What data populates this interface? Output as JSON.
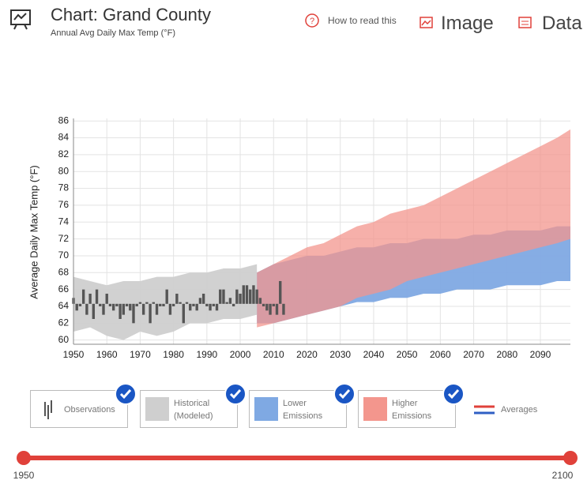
{
  "header": {
    "title": "Chart: Grand County",
    "subtitle": "Annual Avg Daily Max Temp (°F)",
    "help": "How to read this",
    "image": "Image",
    "data": "Data"
  },
  "chart_data": {
    "type": "band",
    "y_label": "Average Daily Max Temp (°F)",
    "xlim": [
      1950,
      2099
    ],
    "ylim": [
      59.5,
      86.3
    ],
    "xticks": [
      1950,
      1960,
      1970,
      1980,
      1990,
      2000,
      2010,
      2020,
      2030,
      2040,
      2050,
      2060,
      2070,
      2080,
      2090
    ],
    "yticks": [
      60,
      62,
      64,
      66,
      68,
      70,
      72,
      74,
      76,
      78,
      80,
      82,
      84,
      86
    ],
    "grid": true,
    "series": [
      {
        "name": "Observations",
        "kind": "bar",
        "color": "#555555",
        "x": [
          1950,
          1951,
          1952,
          1953,
          1954,
          1955,
          1956,
          1957,
          1958,
          1959,
          1960,
          1961,
          1962,
          1963,
          1964,
          1965,
          1966,
          1967,
          1968,
          1969,
          1970,
          1971,
          1972,
          1973,
          1974,
          1975,
          1976,
          1977,
          1978,
          1979,
          1980,
          1981,
          1982,
          1983,
          1984,
          1985,
          1986,
          1987,
          1988,
          1989,
          1990,
          1991,
          1992,
          1993,
          1994,
          1995,
          1996,
          1997,
          1998,
          1999,
          2000,
          2001,
          2002,
          2003,
          2004,
          2005,
          2006,
          2007,
          2008,
          2009,
          2010,
          2011,
          2012,
          2013
        ],
        "values": [
          65,
          63.5,
          64,
          66,
          63,
          65.5,
          62.5,
          66,
          64,
          63,
          65.5,
          64,
          63.5,
          64,
          62.5,
          63,
          64,
          63.5,
          62,
          64,
          64.5,
          63,
          64.5,
          62,
          64.5,
          63,
          64,
          64,
          66,
          63,
          64,
          65.5,
          64.5,
          62,
          64.5,
          63.5,
          64,
          63.5,
          65,
          65.5,
          64,
          63.5,
          64,
          63.5,
          66,
          66,
          64.5,
          65,
          64,
          66,
          65.5,
          66.5,
          66.5,
          66,
          66.5,
          66,
          65,
          64,
          63.5,
          63,
          64,
          63,
          67,
          63
        ]
      },
      {
        "name": "Historical (Modeled)",
        "kind": "band",
        "color": "#cfcfcf",
        "x": [
          1950,
          1955,
          1960,
          1965,
          1970,
          1975,
          1980,
          1985,
          1990,
          1995,
          2000,
          2005
        ],
        "low": [
          61,
          61.5,
          60.5,
          60,
          61,
          60.5,
          61,
          62,
          62,
          62.5,
          62.5,
          63
        ],
        "high": [
          67.5,
          67,
          66.5,
          67,
          67,
          67.5,
          67.5,
          68,
          68,
          68.5,
          68.5,
          69
        ]
      },
      {
        "name": "Lower Emissions",
        "kind": "band",
        "color": "#7fa9e3",
        "x": [
          2005,
          2010,
          2015,
          2020,
          2025,
          2030,
          2035,
          2040,
          2045,
          2050,
          2055,
          2060,
          2065,
          2070,
          2075,
          2080,
          2085,
          2090,
          2095,
          2099
        ],
        "low": [
          62,
          62,
          62.5,
          63,
          63.5,
          64,
          64.5,
          64.5,
          65,
          65,
          65.5,
          65.5,
          66,
          66,
          66,
          66.5,
          66.5,
          66.5,
          67,
          67
        ],
        "high": [
          68,
          69,
          69.5,
          70,
          70,
          70.5,
          71,
          71,
          71.5,
          71.5,
          72,
          72,
          72,
          72.5,
          72.5,
          73,
          73,
          73,
          73.5,
          73.5
        ]
      },
      {
        "name": "Higher Emissions",
        "kind": "band",
        "color": "#f3968d",
        "x": [
          2005,
          2010,
          2015,
          2020,
          2025,
          2030,
          2035,
          2040,
          2045,
          2050,
          2055,
          2060,
          2065,
          2070,
          2075,
          2080,
          2085,
          2090,
          2095,
          2099
        ],
        "low": [
          61.5,
          62,
          62.5,
          63,
          63.5,
          64,
          65,
          65.5,
          66,
          67,
          67.5,
          68,
          68.5,
          69,
          69.5,
          70,
          70.5,
          71,
          71.5,
          72
        ],
        "high": [
          68,
          69,
          70,
          71,
          71.5,
          72.5,
          73.5,
          74,
          75,
          75.5,
          76,
          77,
          78,
          79,
          80,
          81,
          82,
          83,
          84,
          85
        ]
      }
    ],
    "averages_label": "Averages",
    "average_colors": [
      "#e0413a",
      "#2f5fc4"
    ]
  },
  "slider": {
    "start": "1950",
    "end": "2100",
    "color": "#e0413a"
  }
}
